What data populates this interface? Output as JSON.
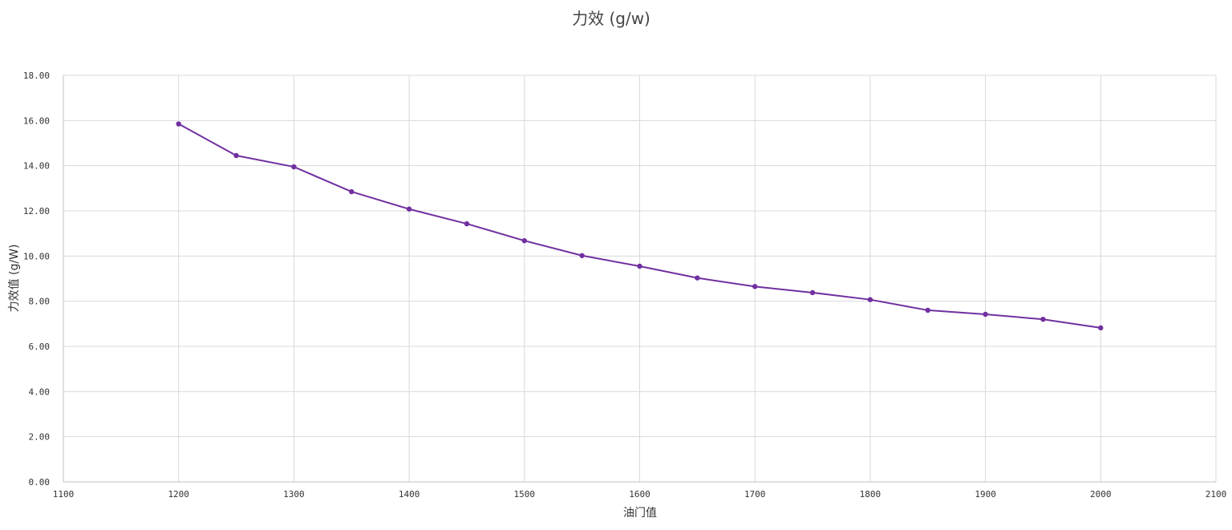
{
  "chart_data": {
    "type": "line",
    "title": "力效 (g/w)",
    "xlabel": "油门值",
    "ylabel": "力效值 (g/W)",
    "xlim": [
      1100,
      2100
    ],
    "ylim": [
      0,
      18
    ],
    "x_ticks": [
      1100,
      1200,
      1300,
      1400,
      1500,
      1600,
      1700,
      1800,
      1900,
      2000,
      2100
    ],
    "y_ticks": [
      "0.00",
      "2.00",
      "4.00",
      "6.00",
      "8.00",
      "10.00",
      "12.00",
      "14.00",
      "16.00",
      "18.00"
    ],
    "grid": true,
    "legend": "none",
    "series": [
      {
        "color": "#7030a0",
        "x": [
          1200,
          1250,
          1300,
          1350,
          1400,
          1450,
          1500,
          1550,
          1600,
          1650,
          1700,
          1750,
          1800,
          1850,
          1900,
          1950,
          2000
        ],
        "values": [
          15.85,
          14.45,
          13.95,
          12.85,
          12.08,
          11.43,
          10.68,
          10.02,
          9.55,
          9.03,
          8.65,
          8.38,
          8.07,
          7.6,
          7.42,
          7.2,
          6.82
        ]
      }
    ]
  }
}
